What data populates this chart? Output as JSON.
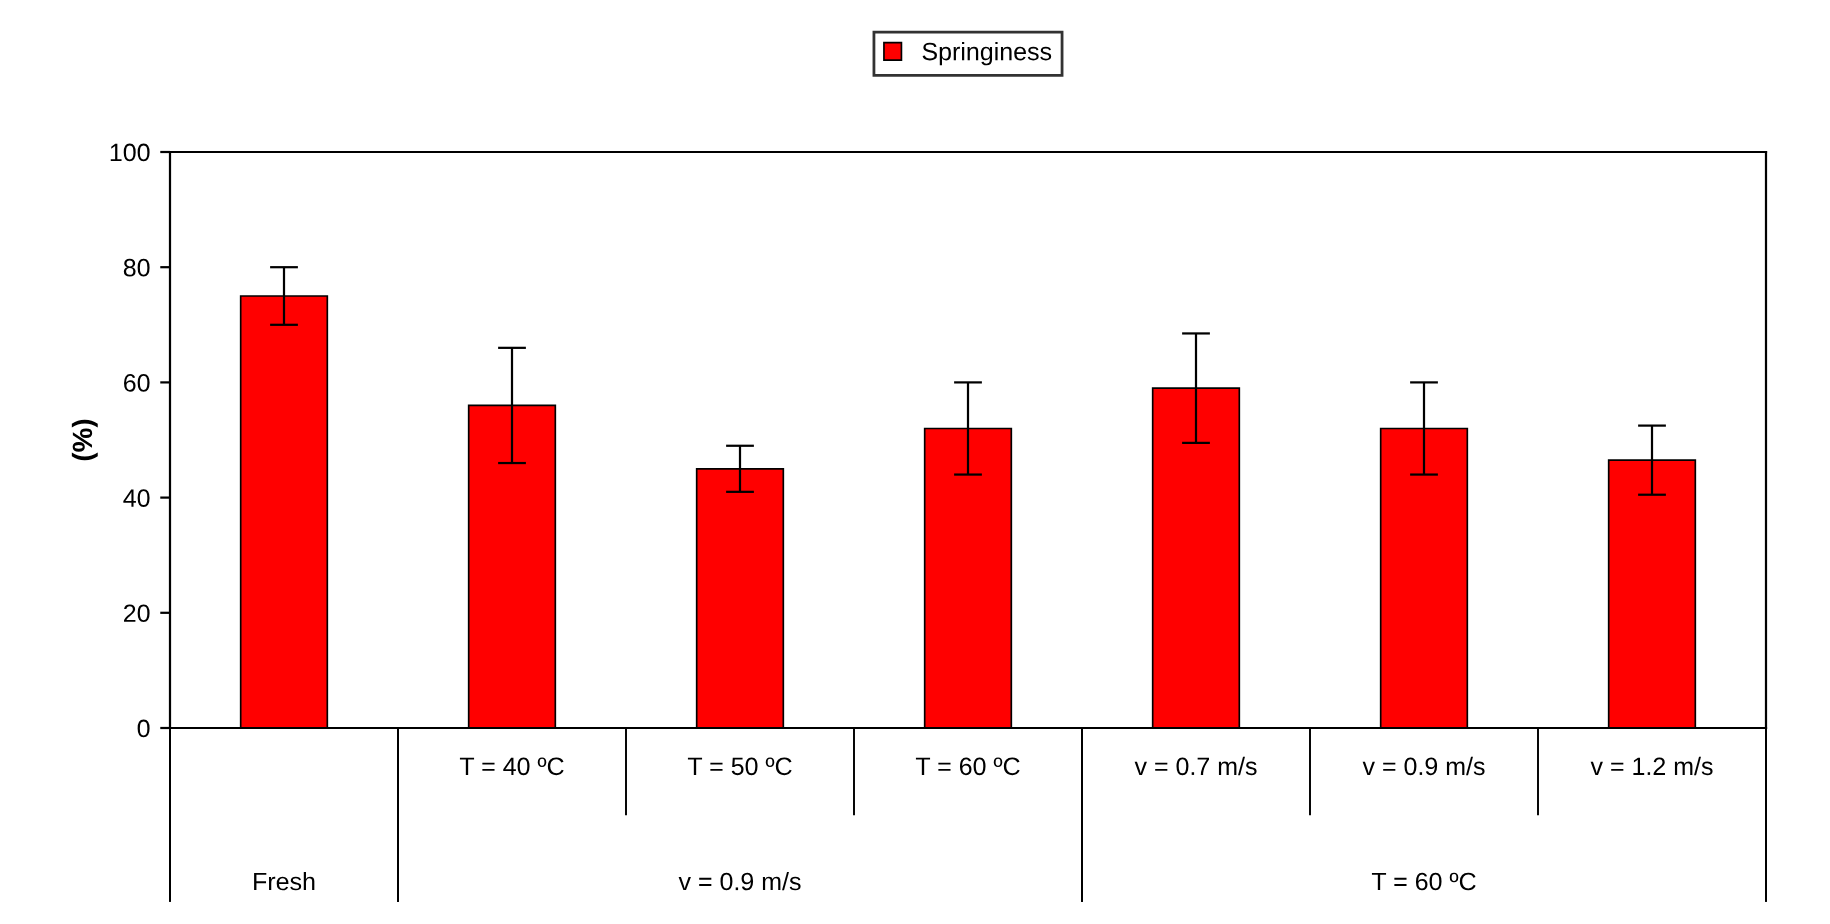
{
  "chart_data": {
    "type": "bar",
    "ylabel": "(%)",
    "categories": [
      null,
      "T = 40 ºC",
      "T = 50 ºC",
      "T = 60 ºC",
      "v = 0.7 m/s",
      "v = 0.9 m/s",
      "v = 1.2 m/s"
    ],
    "series": [
      {
        "name": "Springiness",
        "color": "#ff0000",
        "values": [
          75,
          56,
          45,
          52,
          59,
          52,
          46.5
        ],
        "errors": [
          5,
          10,
          4,
          8,
          9.5,
          8,
          6
        ]
      }
    ],
    "annotations": [
      "Fresh",
      "v = 0.9 m/s",
      "T = 60 ºC"
    ],
    "ylim": [
      0,
      100
    ],
    "yticks": [
      0,
      20,
      40,
      60,
      80,
      100
    ],
    "grid": false,
    "legend": "top"
  }
}
